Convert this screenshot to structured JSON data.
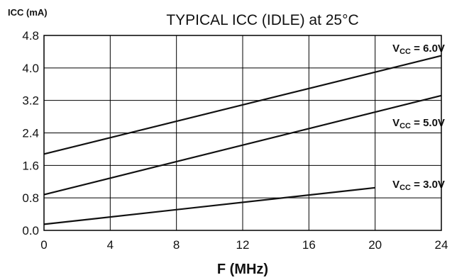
{
  "chart_data": {
    "type": "line",
    "title": "TYPICAL ICC (IDLE) at 25°C",
    "xlabel": "F (MHz)",
    "ylabel": "ICC (mA)",
    "xlim": [
      0,
      24
    ],
    "ylim": [
      0,
      4.8
    ],
    "x_ticks": [
      "0",
      "4",
      "8",
      "12",
      "16",
      "20",
      "24"
    ],
    "y_ticks": [
      "0.0",
      "0.8",
      "1.6",
      "2.4",
      "3.2",
      "4.0",
      "4.8"
    ],
    "grid": true,
    "series": [
      {
        "name": "VCC = 6.0V",
        "label_parts": [
          "V",
          "CC",
          " = 6.0V"
        ],
        "x": [
          0,
          24
        ],
        "y": [
          1.88,
          4.3
        ]
      },
      {
        "name": "VCC = 5.0V",
        "label_parts": [
          "V",
          "CC",
          " = 5.0V"
        ],
        "x": [
          0,
          24
        ],
        "y": [
          0.88,
          3.32
        ]
      },
      {
        "name": "VCC = 3.0V",
        "label_parts": [
          "V",
          "CC",
          " = 3.0V"
        ],
        "x": [
          0,
          20
        ],
        "y": [
          0.15,
          1.05
        ]
      }
    ]
  }
}
